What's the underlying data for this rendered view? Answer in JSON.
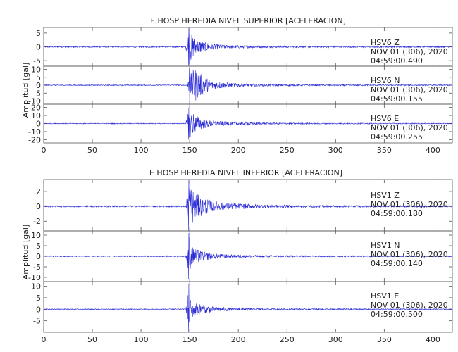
{
  "chart_data": [
    {
      "type": "line",
      "title": "E HOSP HEREDIA NIVEL SUPERIOR [ACELERACION]",
      "ylabel": "Amplitud [gal]",
      "xlim": [
        0,
        420
      ],
      "xticks": [
        0,
        50,
        100,
        150,
        200,
        250,
        300,
        350,
        400
      ],
      "line_color": "#2b2bd6",
      "series": [
        {
          "name": "HSV6   Z",
          "date_label": "NOV 01 (306), 2020",
          "time_label": "04:59:00.490",
          "ylim": [
            -7,
            7
          ],
          "yticks": [
            5,
            0,
            -5
          ],
          "onset": 147,
          "peak": 6.8,
          "envelope": [
            [
              0,
              0.25
            ],
            [
              146,
              0.25
            ],
            [
              148,
              5.5
            ],
            [
              150,
              6.8
            ],
            [
              152,
              4.5
            ],
            [
              155,
              3.5
            ],
            [
              160,
              2.6
            ],
            [
              165,
              1.8
            ],
            [
              175,
              1.0
            ],
            [
              190,
              0.6
            ],
            [
              220,
              0.4
            ],
            [
              260,
              0.3
            ],
            [
              420,
              0.25
            ]
          ]
        },
        {
          "name": "HSV6   N",
          "date_label": "NOV 01 (306), 2020",
          "time_label": "04:59:00.155",
          "ylim": [
            -12,
            12
          ],
          "yticks": [
            10,
            5,
            0,
            -5,
            -10
          ],
          "onset": 148,
          "peak": 11,
          "envelope": [
            [
              0,
              0.3
            ],
            [
              147,
              0.3
            ],
            [
              150,
              6
            ],
            [
              152,
              8
            ],
            [
              155,
              11
            ],
            [
              158,
              9
            ],
            [
              162,
              7
            ],
            [
              166,
              5
            ],
            [
              172,
              3.5
            ],
            [
              180,
              2.2
            ],
            [
              190,
              1.5
            ],
            [
              200,
              1.2
            ],
            [
              215,
              0.9
            ],
            [
              240,
              0.6
            ],
            [
              280,
              0.45
            ],
            [
              420,
              0.3
            ]
          ]
        },
        {
          "name": "HSV6   E",
          "date_label": "NOV 01 (306), 2020",
          "time_label": "04:59:00.255",
          "ylim": [
            -24,
            24
          ],
          "yticks": [
            20,
            10,
            0,
            -10,
            -20
          ],
          "onset": 147,
          "peak": 20,
          "envelope": [
            [
              0,
              0.5
            ],
            [
              146,
              0.5
            ],
            [
              148,
              12
            ],
            [
              150,
              20
            ],
            [
              153,
              15
            ],
            [
              156,
              11
            ],
            [
              160,
              8
            ],
            [
              165,
              6
            ],
            [
              172,
              4
            ],
            [
              180,
              3
            ],
            [
              190,
              2.5
            ],
            [
              200,
              2
            ],
            [
              210,
              2.2
            ],
            [
              220,
              1.5
            ],
            [
              240,
              1
            ],
            [
              280,
              0.7
            ],
            [
              420,
              0.5
            ]
          ]
        }
      ]
    },
    {
      "type": "line",
      "title": "E HOSP HEREDIA NIVEL INFERIOR [ACELERACION]",
      "ylabel": "Amplitud [gal]",
      "xlim": [
        0,
        420
      ],
      "xticks": [
        0,
        50,
        100,
        150,
        200,
        250,
        300,
        350,
        400
      ],
      "line_color": "#2b2bd6",
      "series": [
        {
          "name": "HSV1   Z",
          "date_label": "NOV 01 (306), 2020",
          "time_label": "04:59:00.180",
          "ylim": [
            -3.3,
            3.6
          ],
          "yticks": [
            2,
            0,
            -2
          ],
          "onset": 147,
          "peak": 3.5,
          "envelope": [
            [
              0,
              0.1
            ],
            [
              146,
              0.1
            ],
            [
              148,
              2.2
            ],
            [
              150,
              3.5
            ],
            [
              152,
              2.5
            ],
            [
              156,
              1.8
            ],
            [
              162,
              1.3
            ],
            [
              170,
              0.9
            ],
            [
              180,
              0.6
            ],
            [
              195,
              0.4
            ],
            [
              220,
              0.25
            ],
            [
              260,
              0.15
            ],
            [
              420,
              0.1
            ]
          ]
        },
        {
          "name": "HSV1   N",
          "date_label": "NOV 01 (306), 2020",
          "time_label": "04:59:00.140",
          "ylim": [
            -12,
            12
          ],
          "yticks": [
            10,
            5,
            0,
            -5,
            -10
          ],
          "onset": 147,
          "peak": 11,
          "envelope": [
            [
              0,
              0.25
            ],
            [
              146,
              0.25
            ],
            [
              148,
              6
            ],
            [
              149,
              11
            ],
            [
              151,
              5
            ],
            [
              155,
              4
            ],
            [
              160,
              3
            ],
            [
              166,
              2
            ],
            [
              175,
              1.3
            ],
            [
              190,
              0.8
            ],
            [
              220,
              0.5
            ],
            [
              260,
              0.35
            ],
            [
              420,
              0.25
            ]
          ]
        },
        {
          "name": "HSV1   E",
          "date_label": "NOV 01 (306), 2020",
          "time_label": "04:59:00.500",
          "ylim": [
            -10,
            12
          ],
          "yticks": [
            10,
            5,
            0,
            -5
          ],
          "onset": 147,
          "peak": 11,
          "envelope": [
            [
              0,
              0.2
            ],
            [
              146,
              0.2
            ],
            [
              148,
              7
            ],
            [
              149,
              11
            ],
            [
              151,
              4
            ],
            [
              155,
              3.2
            ],
            [
              160,
              2.4
            ],
            [
              166,
              1.8
            ],
            [
              175,
              1.1
            ],
            [
              190,
              0.7
            ],
            [
              220,
              0.45
            ],
            [
              260,
              0.3
            ],
            [
              420,
              0.2
            ]
          ]
        }
      ]
    }
  ]
}
